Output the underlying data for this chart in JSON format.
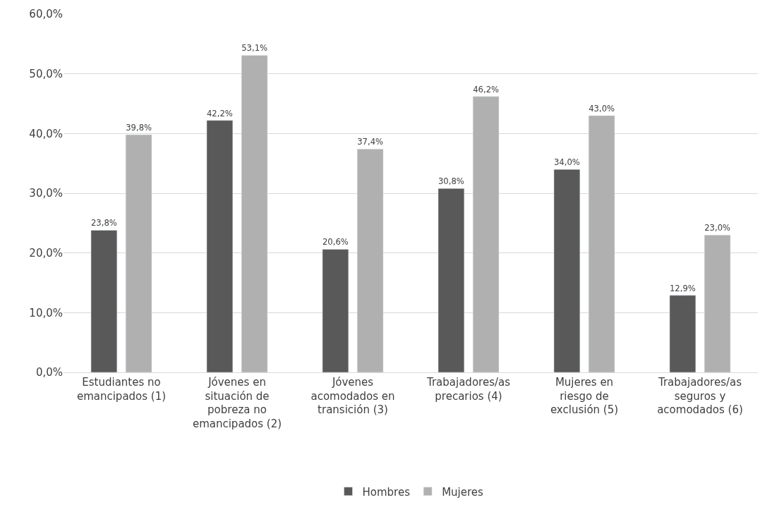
{
  "chart_data": {
    "type": "bar",
    "categories": [
      "Estudiantes no emancipados (1)",
      "Jóvenes en situación de pobreza no emancipados (2)",
      "Jóvenes acomodados en transición (3)",
      "Trabajadores/as precarios (4)",
      "Mujeres en riesgo de exclusión (5)",
      "Trabajadores/as seguros y acomodados (6)"
    ],
    "series": [
      {
        "name": "Hombres",
        "color": "#595959",
        "values": [
          23.8,
          42.2,
          20.6,
          30.8,
          34.0,
          12.9
        ],
        "value_labels": [
          "23,8%",
          "42,2%",
          "20,6%",
          "30,8%",
          "34,0%",
          "12,9%"
        ]
      },
      {
        "name": "Mujeres",
        "color": "#b0b0b0",
        "values": [
          39.8,
          53.1,
          37.4,
          46.2,
          43.0,
          23.0
        ],
        "value_labels": [
          "39,8%",
          "53,1%",
          "37,4%",
          "46,2%",
          "43,0%",
          "23,0%"
        ]
      }
    ],
    "ylim": [
      0,
      60
    ],
    "yticks": [
      {
        "value": 0,
        "label": "0,0%"
      },
      {
        "value": 10,
        "label": "10,0%"
      },
      {
        "value": 20,
        "label": "20,0%"
      },
      {
        "value": 30,
        "label": "30,0%"
      },
      {
        "value": 40,
        "label": "40,0%"
      },
      {
        "value": 50,
        "label": "50,0%"
      },
      {
        "value": 60,
        "label": "60,0%"
      }
    ],
    "grid": "y",
    "legend": "bottom"
  }
}
